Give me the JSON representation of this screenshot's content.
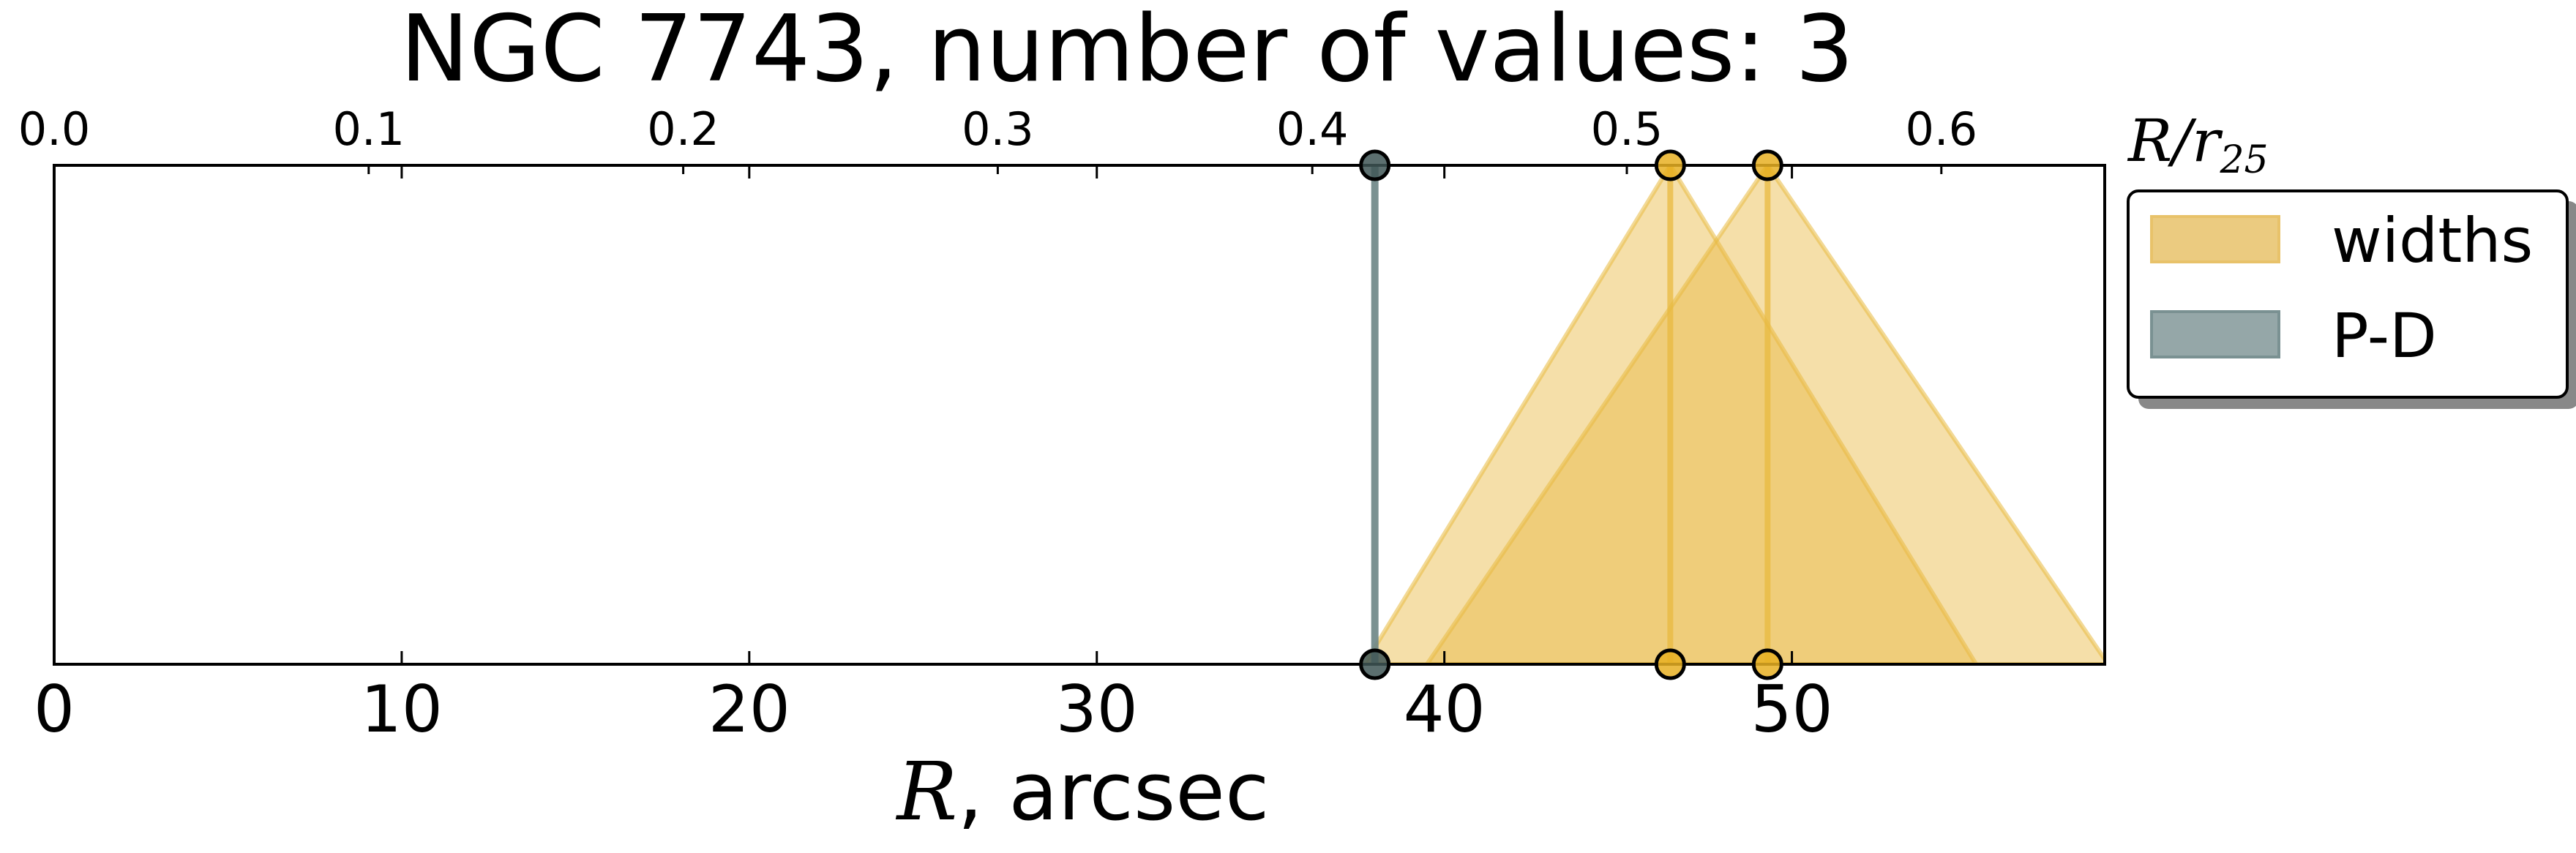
{
  "chart_data": {
    "type": "area",
    "title": "NGC 7743, number of values: 3",
    "xlabel": "R, arcsec",
    "xlabel_parts": {
      "math": "R",
      "rest": ", arcsec"
    },
    "x_top_label": "R/r25",
    "x_top_label_parts": {
      "main": "R/r",
      "sub": "25"
    },
    "xlim": [
      0,
      59
    ],
    "x_ticks": [
      0,
      10,
      20,
      30,
      40,
      50
    ],
    "x_tick_labels": [
      "0",
      "10",
      "20",
      "30",
      "40",
      "50"
    ],
    "x_top_ticks": [
      0.0,
      0.1,
      0.2,
      0.3,
      0.4,
      0.5,
      0.6
    ],
    "x_top_tick_labels": [
      "0.0",
      "0.1",
      "0.2",
      "0.3",
      "0.4",
      "0.5",
      "0.6"
    ],
    "r25_arcsec": 90.5,
    "grid": false,
    "legend_position": "outside-right-top",
    "legend": [
      {
        "label": "widths",
        "color": "#e8c26a"
      },
      {
        "label": "P-D",
        "color": "#7a9192"
      }
    ],
    "series": [
      {
        "name": "widths",
        "color": "#e8b940",
        "marker_color": "#e8b023",
        "points": [
          {
            "x": 46.5,
            "spread": 8.8
          },
          {
            "x": 49.3,
            "spread": 9.8
          }
        ]
      },
      {
        "name": "P-D",
        "color": "#6b8585",
        "marker_color": "#3f5656",
        "points": [
          {
            "x": 38.0
          }
        ]
      }
    ]
  }
}
